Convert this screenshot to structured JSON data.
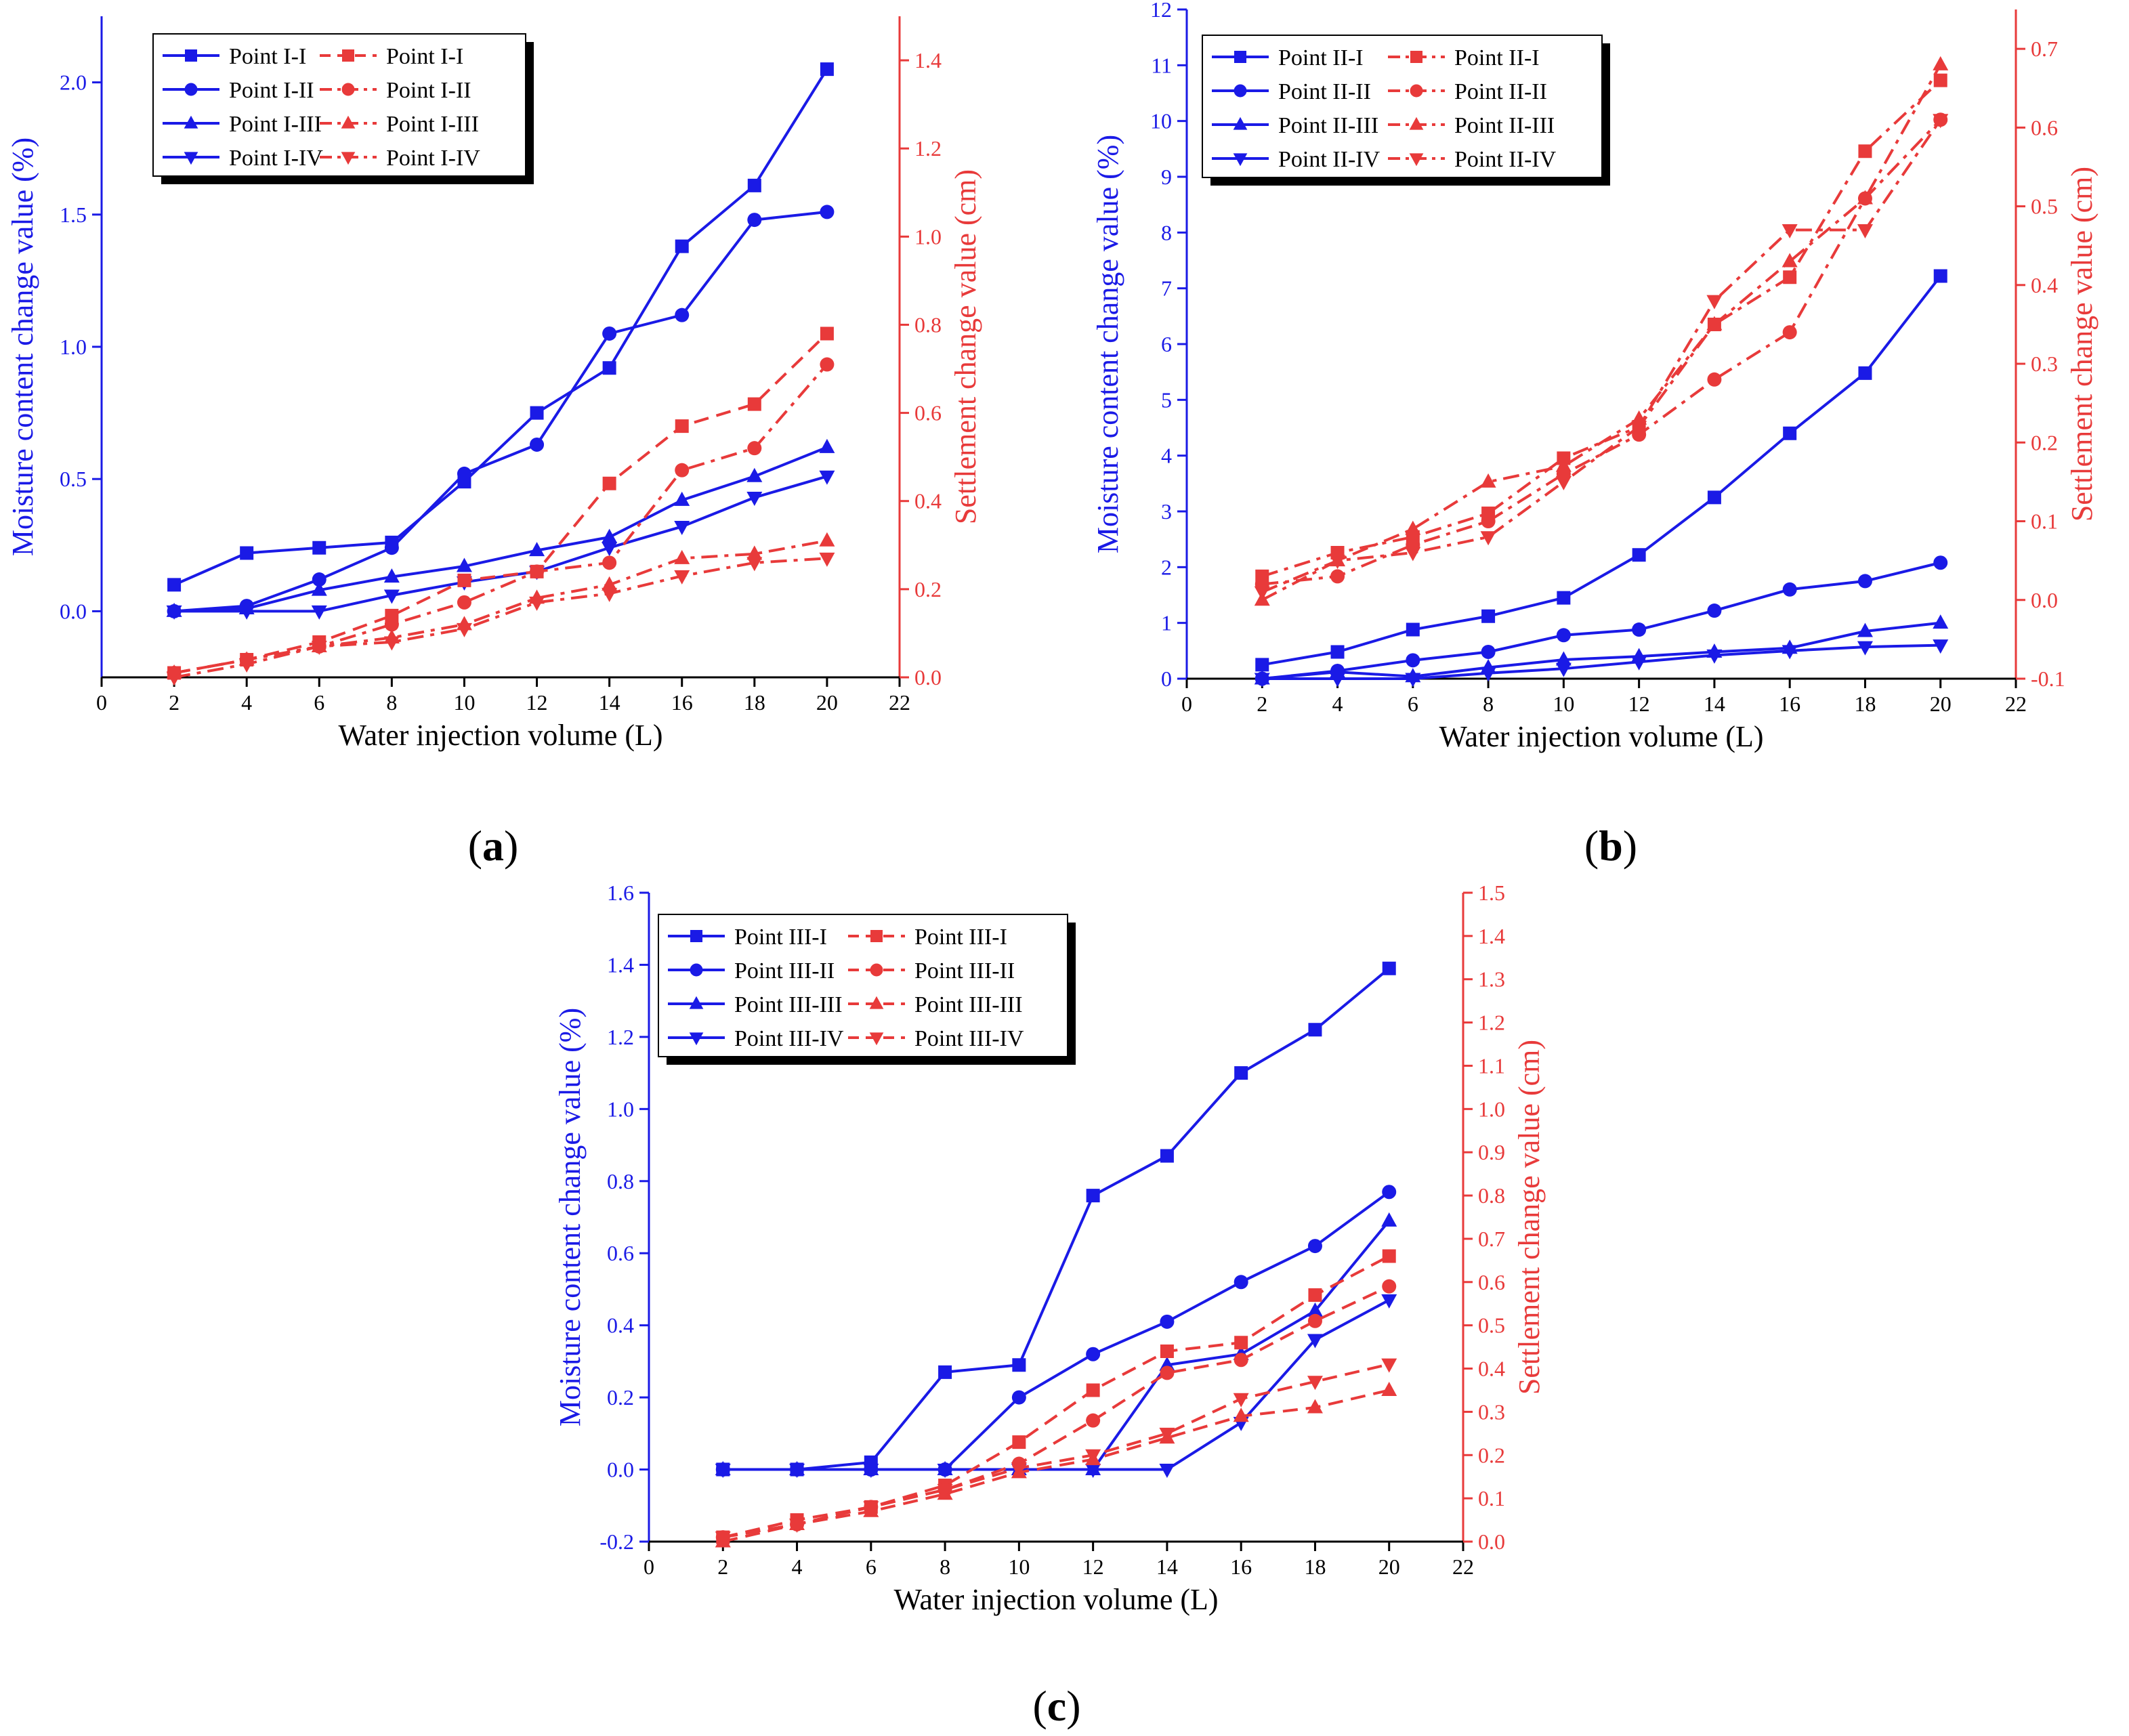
{
  "colors": {
    "blue": "#1a1ae6",
    "red": "#e83a3a",
    "black": "#000000"
  },
  "chart_data": [
    {
      "panel": "a",
      "label_open": "(",
      "label_letter": "a",
      "label_close": ")",
      "type": "line",
      "xlabel": "Water injection volume (L)",
      "ylabel_left": "Moisture content change value (%)",
      "ylabel_right": "Settlement change value (cm)",
      "xlim": [
        0,
        22
      ],
      "xticks": [
        "0",
        "2",
        "4",
        "6",
        "8",
        "10",
        "12",
        "14",
        "16",
        "18",
        "20",
        "22"
      ],
      "ylim_left": [
        -0.25,
        2.25
      ],
      "yticks_left": [
        "0.0",
        "0.5",
        "1.0",
        "1.5",
        "2.0"
      ],
      "ylim_right": [
        0,
        1.5
      ],
      "yticks_right": [
        "0.0",
        "0.2",
        "0.4",
        "0.6",
        "0.8",
        "1.0",
        "1.2",
        "1.4"
      ],
      "x": [
        2,
        4,
        6,
        8,
        10,
        12,
        14,
        16,
        18,
        20
      ],
      "series": [
        {
          "name": "Point I-I",
          "axis": "left",
          "marker": "square",
          "dash": "solid",
          "values": [
            0.1,
            0.22,
            0.24,
            0.26,
            0.49,
            0.75,
            0.92,
            1.38,
            1.61,
            2.05
          ]
        },
        {
          "name": "Point I-II",
          "axis": "left",
          "marker": "circle",
          "dash": "solid",
          "values": [
            0.0,
            0.02,
            0.12,
            0.24,
            0.52,
            0.63,
            1.05,
            1.12,
            1.48,
            1.51
          ]
        },
        {
          "name": "Point I-III",
          "axis": "left",
          "marker": "triangle-up",
          "dash": "solid",
          "values": [
            0.0,
            0.01,
            0.08,
            0.13,
            0.17,
            0.23,
            0.28,
            0.42,
            0.51,
            0.62
          ]
        },
        {
          "name": "Point I-IV",
          "axis": "left",
          "marker": "triangle-down",
          "dash": "solid",
          "values": [
            0.0,
            0.0,
            0.0,
            0.06,
            0.11,
            0.15,
            0.24,
            0.32,
            0.43,
            0.51
          ]
        },
        {
          "name": "Point I-I",
          "axis": "right",
          "marker": "square",
          "dash": "dash",
          "values": [
            0.01,
            0.04,
            0.08,
            0.14,
            0.22,
            0.24,
            0.44,
            0.57,
            0.62,
            0.78
          ]
        },
        {
          "name": "Point I-II",
          "axis": "right",
          "marker": "circle",
          "dash": "dashdot",
          "values": [
            0.01,
            0.04,
            0.07,
            0.12,
            0.17,
            0.24,
            0.26,
            0.47,
            0.52,
            0.71
          ]
        },
        {
          "name": "Point I-III",
          "axis": "right",
          "marker": "triangle-up",
          "dash": "dashdot",
          "values": [
            0.01,
            0.04,
            0.07,
            0.09,
            0.12,
            0.18,
            0.21,
            0.27,
            0.28,
            0.31
          ]
        },
        {
          "name": "Point I-IV",
          "axis": "right",
          "marker": "triangle-down",
          "dash": "dashdot",
          "values": [
            0.0,
            0.03,
            0.07,
            0.08,
            0.11,
            0.17,
            0.19,
            0.23,
            0.26,
            0.27
          ]
        }
      ]
    },
    {
      "panel": "b",
      "label_open": "(",
      "label_letter": "b",
      "label_close": ")",
      "type": "line",
      "xlabel": "Water injection volume (L)",
      "ylabel_left": "Moisture content change value (%)",
      "ylabel_right": "Settlement change value (cm)",
      "xlim": [
        0,
        22
      ],
      "xticks": [
        "0",
        "2",
        "4",
        "6",
        "8",
        "10",
        "12",
        "14",
        "16",
        "18",
        "20",
        "22"
      ],
      "ylim_left": [
        0,
        12
      ],
      "yticks_left": [
        "0",
        "1",
        "2",
        "3",
        "4",
        "5",
        "6",
        "7",
        "8",
        "9",
        "10",
        "11",
        "12"
      ],
      "ylim_right": [
        -0.1,
        0.75
      ],
      "yticks_right": [
        "-0.1",
        "0.0",
        "0.1",
        "0.2",
        "0.3",
        "0.4",
        "0.5",
        "0.6",
        "0.7"
      ],
      "x": [
        2,
        4,
        6,
        8,
        10,
        12,
        14,
        16,
        18,
        20
      ],
      "series": [
        {
          "name": "Point II-I",
          "axis": "left",
          "marker": "square",
          "dash": "solid",
          "values": [
            0.25,
            0.48,
            0.88,
            1.12,
            1.45,
            2.22,
            3.25,
            4.4,
            5.48,
            7.22
          ]
        },
        {
          "name": "Point II-II",
          "axis": "left",
          "marker": "circle",
          "dash": "solid",
          "values": [
            0.0,
            0.14,
            0.33,
            0.48,
            0.78,
            0.88,
            1.22,
            1.6,
            1.75,
            2.08
          ]
        },
        {
          "name": "Point II-III",
          "axis": "left",
          "marker": "triangle-up",
          "dash": "solid",
          "values": [
            0.0,
            0.12,
            0.04,
            0.2,
            0.34,
            0.4,
            0.48,
            0.55,
            0.85,
            1.0
          ]
        },
        {
          "name": "Point II-IV",
          "axis": "left",
          "marker": "triangle-down",
          "dash": "solid",
          "values": [
            0.0,
            0.0,
            0.0,
            0.1,
            0.18,
            0.3,
            0.42,
            0.5,
            0.57,
            0.6
          ]
        },
        {
          "name": "Point  II-I",
          "axis": "right",
          "marker": "square",
          "dash": "dashdot",
          "values": [
            0.03,
            0.06,
            0.08,
            0.11,
            0.18,
            0.22,
            0.35,
            0.41,
            0.57,
            0.66
          ]
        },
        {
          "name": "Point II-II",
          "axis": "right",
          "marker": "circle",
          "dash": "dashdot",
          "values": [
            0.02,
            0.03,
            0.07,
            0.1,
            0.16,
            0.21,
            0.28,
            0.34,
            0.51,
            0.61
          ]
        },
        {
          "name": "Point II-III",
          "axis": "right",
          "marker": "triangle-up",
          "dash": "dashdot",
          "values": [
            0.0,
            0.05,
            0.09,
            0.15,
            0.17,
            0.23,
            0.35,
            0.43,
            0.51,
            0.68
          ]
        },
        {
          "name": "Point II-IV",
          "axis": "right",
          "marker": "triangle-down",
          "dash": "dashdot",
          "values": [
            0.01,
            0.05,
            0.06,
            0.08,
            0.15,
            0.22,
            0.38,
            0.47,
            0.47,
            0.61
          ]
        }
      ]
    },
    {
      "panel": "c",
      "label_open": "(",
      "label_letter": "c",
      "label_close": ")",
      "type": "line",
      "xlabel": "Water injection volume (L)",
      "ylabel_left": "Moisture content change value (%)",
      "ylabel_right": "Settlement change value (cm)",
      "xlim": [
        0,
        22
      ],
      "xticks": [
        "0",
        "2",
        "4",
        "6",
        "8",
        "10",
        "12",
        "14",
        "16",
        "18",
        "20",
        "22"
      ],
      "ylim_left": [
        -0.2,
        1.6
      ],
      "yticks_left": [
        "-0.2",
        "0.0",
        "0.2",
        "0.4",
        "0.6",
        "0.8",
        "1.0",
        "1.2",
        "1.4",
        "1.6"
      ],
      "ylim_right": [
        0,
        1.5
      ],
      "yticks_right": [
        "0.0",
        "0.1",
        "0.2",
        "0.3",
        "0.4",
        "0.5",
        "0.6",
        "0.7",
        "0.8",
        "0.9",
        "1.0",
        "1.1",
        "1.2",
        "1.3",
        "1.4",
        "1.5"
      ],
      "x": [
        2,
        4,
        6,
        8,
        10,
        12,
        14,
        16,
        18,
        20
      ],
      "series": [
        {
          "name": "Point III-I",
          "axis": "left",
          "marker": "square",
          "dash": "solid",
          "values": [
            0.0,
            0.0,
            0.02,
            0.27,
            0.29,
            0.76,
            0.87,
            1.1,
            1.22,
            1.39
          ]
        },
        {
          "name": "Point III-II",
          "axis": "left",
          "marker": "circle",
          "dash": "solid",
          "values": [
            0.0,
            0.0,
            0.0,
            0.0,
            0.2,
            0.32,
            0.41,
            0.52,
            0.62,
            0.77
          ]
        },
        {
          "name": "Point III-III",
          "axis": "left",
          "marker": "triangle-up",
          "dash": "solid",
          "values": [
            0.0,
            0.0,
            0.0,
            0.0,
            0.0,
            0.0,
            0.29,
            0.32,
            0.44,
            0.69
          ]
        },
        {
          "name": "Point III-IV",
          "axis": "left",
          "marker": "triangle-down",
          "dash": "solid",
          "values": [
            0.0,
            0.0,
            0.0,
            0.0,
            0.0,
            0.0,
            0.0,
            0.13,
            0.36,
            0.47
          ]
        },
        {
          "name": "Point  III-I",
          "axis": "right",
          "marker": "square",
          "dash": "dash",
          "values": [
            0.01,
            0.05,
            0.08,
            0.13,
            0.23,
            0.35,
            0.44,
            0.46,
            0.57,
            0.66
          ]
        },
        {
          "name": "Point III-II",
          "axis": "right",
          "marker": "circle",
          "dash": "dash",
          "values": [
            0.01,
            0.04,
            0.08,
            0.12,
            0.18,
            0.28,
            0.39,
            0.42,
            0.51,
            0.59
          ]
        },
        {
          "name": "Point III-III",
          "axis": "right",
          "marker": "triangle-up",
          "dash": "dash",
          "values": [
            0.0,
            0.04,
            0.07,
            0.11,
            0.16,
            0.19,
            0.24,
            0.29,
            0.31,
            0.35
          ]
        },
        {
          "name": "Point III-IV",
          "axis": "right",
          "marker": "triangle-down",
          "dash": "dash",
          "values": [
            0.01,
            0.04,
            0.08,
            0.12,
            0.17,
            0.2,
            0.25,
            0.33,
            0.37,
            0.41
          ]
        }
      ]
    }
  ]
}
